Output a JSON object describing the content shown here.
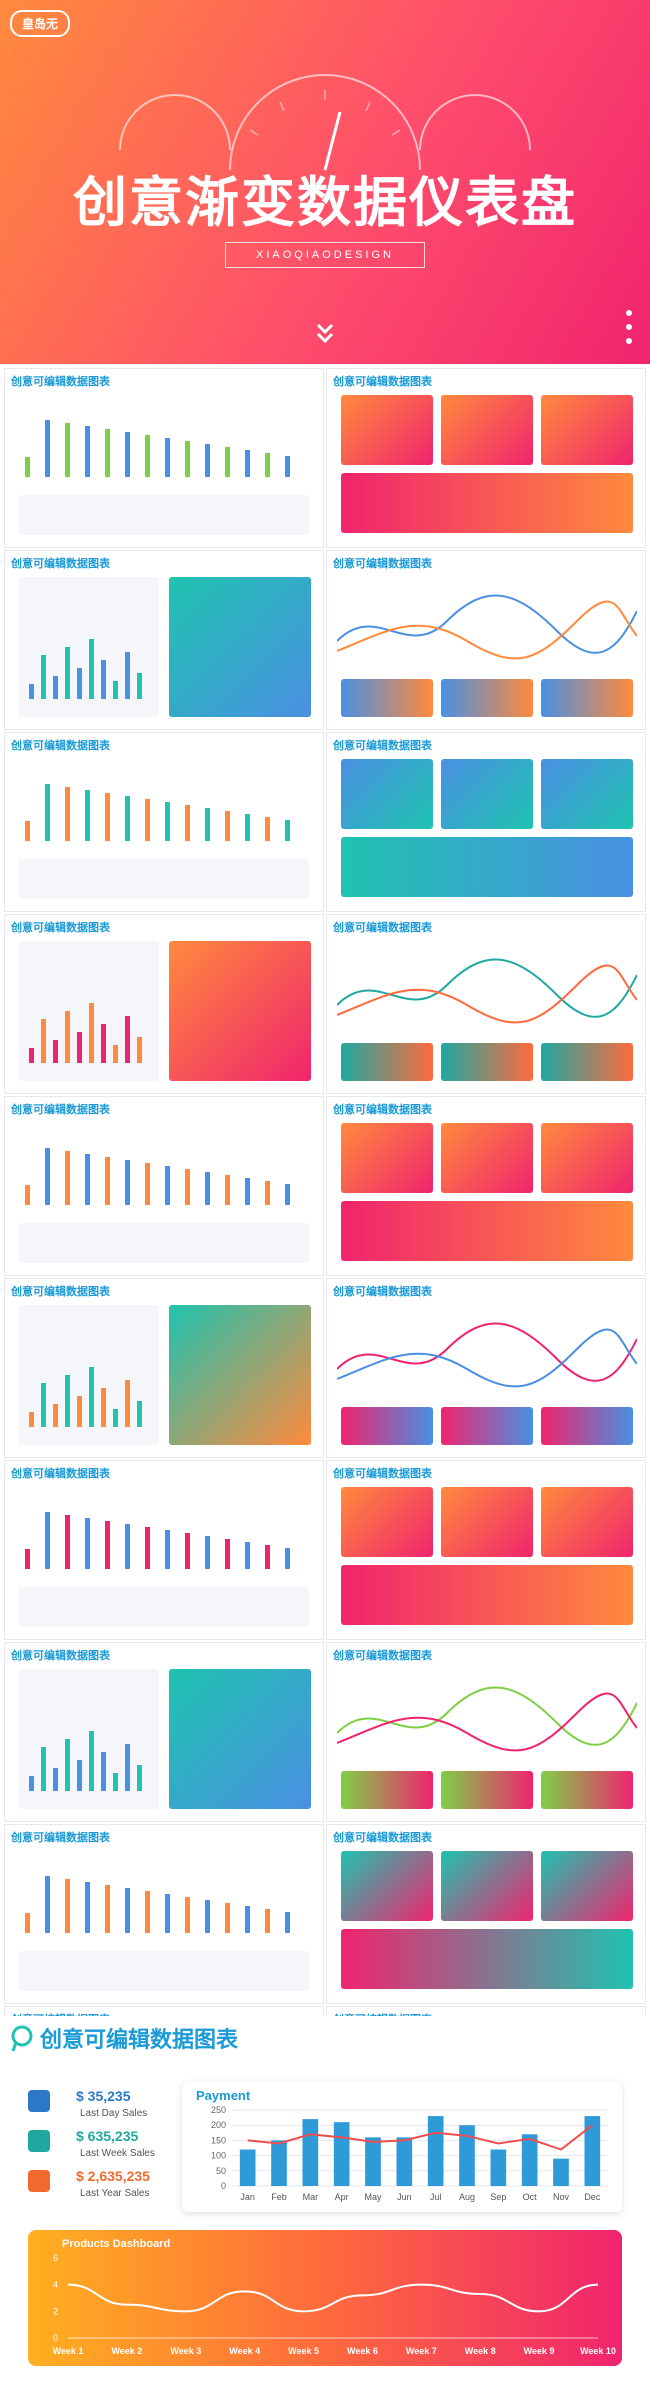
{
  "hero": {
    "logo": "皇岛无",
    "title": "创意渐变数据仪表盘",
    "subtitle": "XIAOQIAODESIGN"
  },
  "tile_title": "创意可编辑数据图表",
  "tiles": [
    {
      "id": 1
    },
    {
      "id": 2
    },
    {
      "id": 3
    },
    {
      "id": 4
    },
    {
      "id": 5
    },
    {
      "id": 6
    },
    {
      "id": 7
    },
    {
      "id": 8
    },
    {
      "id": 9
    },
    {
      "id": 10
    },
    {
      "id": 11
    },
    {
      "id": 12
    },
    {
      "id": 13
    },
    {
      "id": 14
    },
    {
      "id": 15
    },
    {
      "id": 16
    },
    {
      "id": 17
    },
    {
      "id": 18
    },
    {
      "id": 19
    },
    {
      "id": 20
    }
  ],
  "colors": {
    "blue": "#1a9bd7",
    "orange": "#ff8a3d",
    "pink": "#f0246e",
    "teal": "#1fc3b0",
    "green": "#7fcf46"
  },
  "feature": {
    "title": "创意可编辑数据图表",
    "stats": [
      {
        "value": "$ 35,235",
        "label": "Last Day Sales",
        "color": "#2a78c6",
        "icon": "chart-icon"
      },
      {
        "value": "$ 635,235",
        "label": "Last Week Sales",
        "color": "#1fa8a0",
        "icon": "shuffle-icon"
      },
      {
        "value": "$ 2,635,235",
        "label": "Last Year Sales",
        "color": "#f06a2d",
        "icon": "bar-icon"
      }
    ],
    "payment": {
      "title": "Payment",
      "yticks": [
        "250",
        "200",
        "150",
        "100",
        "50",
        "0"
      ],
      "months": [
        "Jan",
        "Feb",
        "Mar",
        "Apr",
        "May",
        "Jun",
        "Jul",
        "Aug",
        "Sep",
        "Oct",
        "Nov",
        "Dec"
      ]
    },
    "products": {
      "title": "Products Dashboard",
      "yticks": [
        "6",
        "4",
        "2",
        "0"
      ],
      "weeks": [
        "Week 1",
        "Week 2",
        "Week 3",
        "Week 4",
        "Week 5",
        "Week 6",
        "Week 7",
        "Week 8",
        "Week 9",
        "Week 10"
      ]
    }
  },
  "chart_data": [
    {
      "type": "bar",
      "title": "Payment",
      "categories": [
        "Jan",
        "Feb",
        "Mar",
        "Apr",
        "May",
        "Jun",
        "Jul",
        "Aug",
        "Sep",
        "Oct",
        "Nov",
        "Dec"
      ],
      "series": [
        {
          "values": [
            120,
            150,
            220,
            210,
            160,
            160,
            230,
            200,
            120,
            170,
            90,
            230
          ]
        },
        {
          "values": [
            150,
            140,
            170,
            160,
            145,
            150,
            175,
            165,
            140,
            155,
            120,
            200
          ]
        }
      ],
      "ylim": [
        0,
        250
      ]
    },
    {
      "type": "line",
      "title": "Products Dashboard",
      "categories": [
        "Week 1",
        "Week 2",
        "Week 3",
        "Week 4",
        "Week 5",
        "Week 6",
        "Week 7",
        "Week 8",
        "Week 9",
        "Week 10"
      ],
      "series": [
        {
          "values": [
            4,
            2.5,
            2,
            3.5,
            2,
            3.2,
            4,
            3.3,
            2,
            4
          ]
        }
      ],
      "ylim": [
        0,
        6
      ]
    }
  ]
}
